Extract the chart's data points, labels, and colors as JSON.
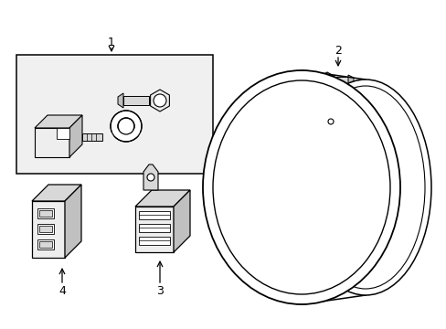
{
  "bg_color": "#ffffff",
  "line_color": "#000000",
  "fill_white": "#ffffff",
  "fill_light": "#eeeeee",
  "fill_mid": "#d8d8d8",
  "fill_dark": "#c0c0c0",
  "box_bg": "#f0f0f0",
  "lw_main": 1.0,
  "lw_thick": 1.5,
  "lw_thin": 0.7
}
